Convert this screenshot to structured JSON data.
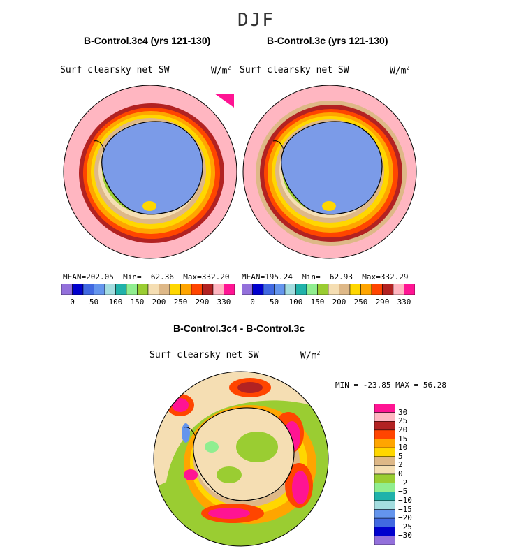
{
  "season": "DJF",
  "panels": [
    {
      "case_title": "B-Control.3c4 (yrs 121-130)",
      "variable": "Surf clearsky net SW",
      "units_base": "W/m",
      "units_exp": "2",
      "mean_label": "MEAN=",
      "mean": "202.05",
      "min_label": "Min=",
      "min": "62.36",
      "max_label": "Max=",
      "max": "332.20"
    },
    {
      "case_title": "B-Control.3c (yrs 121-130)",
      "variable": "Surf clearsky net SW",
      "units_base": "W/m",
      "units_exp": "2",
      "mean_label": "MEAN=",
      "mean": "195.24",
      "min_label": "Min=",
      "min": "62.93",
      "max_label": "Max=",
      "max": "332.29"
    }
  ],
  "abs_colorbar": {
    "colors": [
      "#9370db",
      "#0000cd",
      "#4169e1",
      "#6495ed",
      "#a4dde0",
      "#20b2aa",
      "#90ee90",
      "#9acd32",
      "#f5deb3",
      "#deb887",
      "#ffd700",
      "#ffa500",
      "#ff4500",
      "#b22222",
      "#ffb6c1",
      "#ff1493"
    ],
    "tick_labels": [
      "0",
      "50",
      "100",
      "150",
      "200",
      "250",
      "290",
      "330"
    ]
  },
  "diff": {
    "title": "B-Control.3c4 - B-Control.3c",
    "variable": "Surf clearsky net SW",
    "units_base": "W/m",
    "units_exp": "2",
    "minmax_text": "MIN = -23.85 MAX =  56.28",
    "colorbar": {
      "colors_top_to_bottom": [
        "#ff1493",
        "#ffb6c1",
        "#b22222",
        "#ff4500",
        "#ffa500",
        "#ffd700",
        "#deb887",
        "#f5deb3",
        "#9acd32",
        "#90ee90",
        "#20b2aa",
        "#a4dde0",
        "#6495ed",
        "#4169e1",
        "#0000cd",
        "#9370db"
      ],
      "labels_top_to_bottom": [
        "30",
        "25",
        "20",
        "15",
        "10",
        "5",
        "2",
        "0",
        "−2",
        "−5",
        "−10",
        "−15",
        "−20",
        "−25",
        "−30"
      ]
    }
  }
}
